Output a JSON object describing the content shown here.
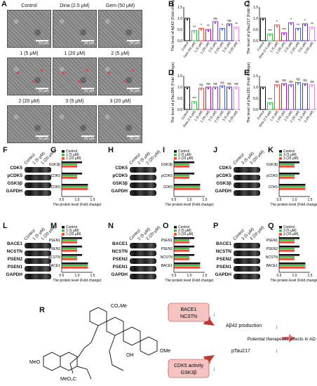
{
  "panels": {
    "A": "A",
    "B": "B",
    "C": "C",
    "D": "D",
    "E": "E",
    "F": "F",
    "G": "G",
    "H": "H",
    "I": "I",
    "J": "J",
    "K": "K",
    "L": "L",
    "M": "M",
    "N": "N",
    "O": "O",
    "P": "P",
    "Q": "Q",
    "R": "R"
  },
  "micrographs": [
    {
      "title": "Control",
      "scale": "50 μm"
    },
    {
      "title": "Dina (2.5 μM)",
      "scale": "50 μm"
    },
    {
      "title": "Gem (50 μM)",
      "scale": "50 μm"
    },
    {
      "title": "1 (5 μM)",
      "scale": "50 μm"
    },
    {
      "title": "1 (20 μM)",
      "scale": "50 μm"
    },
    {
      "title": "2 (5 μM)",
      "scale": "50 μm"
    },
    {
      "title": "2 (20 μM)",
      "scale": "50 μm"
    },
    {
      "title": "3 (5 μM)",
      "scale": "50 μm"
    },
    {
      "title": "3 (20 μM)",
      "scale": "50 μm"
    }
  ],
  "chart_data": [
    {
      "type": "bar",
      "ylabel": "The level of Aβ42 (Fold change)",
      "categories": [
        "Control",
        "Gem (50 μM)",
        "1 (5 μM)",
        "1 (20 μM)",
        "2 (5 μM)",
        "2 (20 μM)",
        "3 (5 μM)",
        "3 (20 μM)"
      ],
      "values": [
        1.0,
        0.45,
        0.55,
        0.5,
        0.85,
        0.55,
        0.75,
        0.6
      ],
      "significance": [
        "",
        "**",
        "*",
        "**",
        "ns",
        "*",
        "ns",
        "**"
      ],
      "ylim": [
        0,
        1.5
      ],
      "yticks": [
        "0.0",
        "0.5",
        "1.0",
        "1.5"
      ]
    },
    {
      "type": "bar",
      "ylabel": "The level of pTau217 (Fold change)",
      "categories": [
        "Control",
        "Dina (2.5 μM)",
        "1 (5 μM)",
        "1 (20 μM)",
        "2 (5 μM)",
        "2 (20 μM)",
        "3 (5 μM)",
        "3 (20 μM)"
      ],
      "values": [
        1.0,
        0.3,
        0.7,
        0.35,
        0.8,
        0.55,
        0.75,
        0.6
      ],
      "significance": [
        "",
        "***",
        "*",
        "***",
        "*",
        "**",
        "*",
        "**"
      ],
      "ylim": [
        0,
        1.5
      ],
      "yticks": [
        "0.0",
        "0.5",
        "1.0",
        "1.5"
      ]
    },
    {
      "type": "bar",
      "ylabel": "The level of pTau396 (Fold change)",
      "categories": [
        "Control",
        "Dina (2.5 μM)",
        "1 (5 μM)",
        "1 (20 μM)",
        "2 (5 μM)",
        "2 (20 μM)",
        "3 (5 μM)",
        "3 (20 μM)"
      ],
      "values": [
        1.0,
        0.35,
        0.95,
        1.0,
        1.0,
        1.05,
        1.0,
        1.0
      ],
      "significance": [
        "",
        "***",
        "ns",
        "ns",
        "ns",
        "ns",
        "ns",
        "ns"
      ],
      "ylim": [
        0,
        1.5
      ],
      "yticks": [
        "0.0",
        "0.5",
        "1.0",
        "1.5"
      ]
    },
    {
      "type": "bar",
      "ylabel": "The level of pTau181 (Fold change)",
      "categories": [
        "Control",
        "Dina (2.5 μM)",
        "1 (5 μM)",
        "1 (20 μM)",
        "2 (5 μM)",
        "2 (20 μM)",
        "3 (5 μM)",
        "3 (20 μM)"
      ],
      "values": [
        1.0,
        0.3,
        1.1,
        1.15,
        1.1,
        1.2,
        1.15,
        1.1
      ],
      "significance": [
        "",
        "***",
        "ns",
        "ns",
        "ns",
        "ns",
        "ns",
        "ns"
      ],
      "ylim": [
        0,
        1.5
      ],
      "yticks": [
        "0.0",
        "0.5",
        "1.0",
        "1.5"
      ]
    }
  ],
  "blots": {
    "F": {
      "headers": [
        "Control",
        "1 (5 μM)",
        "1 (20 μM)"
      ],
      "proteins": [
        "CDK5",
        "pCDK5",
        "GSK3β",
        "GAPDH"
      ]
    },
    "H": {
      "headers": [
        "Control",
        "2 (5 μM)",
        "2 (20 μM)"
      ],
      "proteins": [
        "CDK5",
        "pCDK5",
        "GSK3β",
        "GAPDH"
      ]
    },
    "J": {
      "headers": [
        "Control",
        "3 (5 μM)",
        "3 (20 μM)"
      ],
      "proteins": [
        "CDK5",
        "pCDK5",
        "GSK3β",
        "GAPDH"
      ]
    },
    "L": {
      "headers": [
        "Control",
        "1 (5 μM)",
        "1 (20 μM)"
      ],
      "proteins": [
        "BACE1",
        "NCSTN",
        "PSEN2",
        "PSEN1",
        "GAPDH"
      ]
    },
    "N": {
      "headers": [
        "Control",
        "2 (5 μM)",
        "2 (20 μM)"
      ],
      "proteins": [
        "BACE1",
        "NCSTN",
        "PSEN2",
        "PSEN1",
        "GAPDH"
      ]
    },
    "P": {
      "headers": [
        "Control",
        "3 (5 μM)",
        "3 (20 μM)"
      ],
      "proteins": [
        "BACE1",
        "NCSTN",
        "PSEN2",
        "PSEN1",
        "GAPDH"
      ]
    }
  },
  "hbars": {
    "G": {
      "legend": [
        "Control",
        "1 (5 μM)",
        "1 (20 μM)"
      ],
      "proteins": [
        "GSK3β",
        "pCDK5",
        "CDK5"
      ],
      "xlabel": "The protein level (Fold change)",
      "xticks": [
        "0.5",
        "1.0",
        "1.5"
      ]
    },
    "I": {
      "legend": [
        "Control",
        "2 (5 μM)",
        "2 (20 μM)"
      ],
      "proteins": [
        "GSK3β",
        "pCDK5",
        "CDK5"
      ],
      "xlabel": "The protein level (Fold change)",
      "xticks": [
        "0.5",
        "1.0",
        "1.5"
      ]
    },
    "K": {
      "legend": [
        "Control",
        "3 (5 μM)",
        "3 (20 μM)"
      ],
      "proteins": [
        "GSK3β",
        "pCDK5",
        "CDK5"
      ],
      "xlabel": "The protein level (Fold change)",
      "xticks": [
        "0.5",
        "1.0",
        "1.5"
      ]
    },
    "M": {
      "legend": [
        "Control",
        "1 (5 μM)",
        "1 (20 μM)"
      ],
      "proteins": [
        "PSEN1",
        "PSEN2",
        "NCSTN",
        "BACE1"
      ],
      "xlabel": "The protein level (Fold change)",
      "xticks": [
        "0.5",
        "1.0",
        "1.5"
      ]
    },
    "O": {
      "legend": [
        "Control",
        "2 (5 μM)",
        "2 (20 μM)"
      ],
      "proteins": [
        "PSEN1",
        "PSEN2",
        "NCSTN",
        "BACE1"
      ],
      "xlabel": "The protein level (Fold change)",
      "xticks": [
        "0.5",
        "1.0",
        "1.5"
      ]
    },
    "Q": {
      "legend": [
        "Control",
        "3 (5 μM)",
        "3 (20 μM)"
      ],
      "proteins": [
        "PSEN1",
        "PSEN2",
        "NCSTN",
        "BACE1"
      ],
      "xlabel": "The protein level (Fold change)",
      "xticks": [
        "0.5",
        "1.0",
        "1.5"
      ]
    }
  },
  "scheme": {
    "top_box": [
      "BACE1",
      "NCSTN"
    ],
    "bottom_box": [
      "CDK5 activity",
      "GSK3β"
    ],
    "effect1": "Aβ42 production",
    "effect2": "pTau217",
    "result": "Potential therapeutic effects in AD",
    "ester_top": "CO₂Me",
    "ester_bottom": "MeO₂C",
    "methoxy_left": "MeO",
    "methoxy_right": "OMe",
    "hydroxyl": "OH"
  },
  "colors": {
    "control": "#111111",
    "g1": "#2ecc40",
    "g2": "#ff4136",
    "g3": "#b10dc9",
    "g4": "#7f3fbf",
    "g5": "#3b5bdb",
    "g6": "#5c2fb0",
    "g7": "#e58bd8",
    "arrow": "#c0392b",
    "box": "#f4b3b3"
  }
}
